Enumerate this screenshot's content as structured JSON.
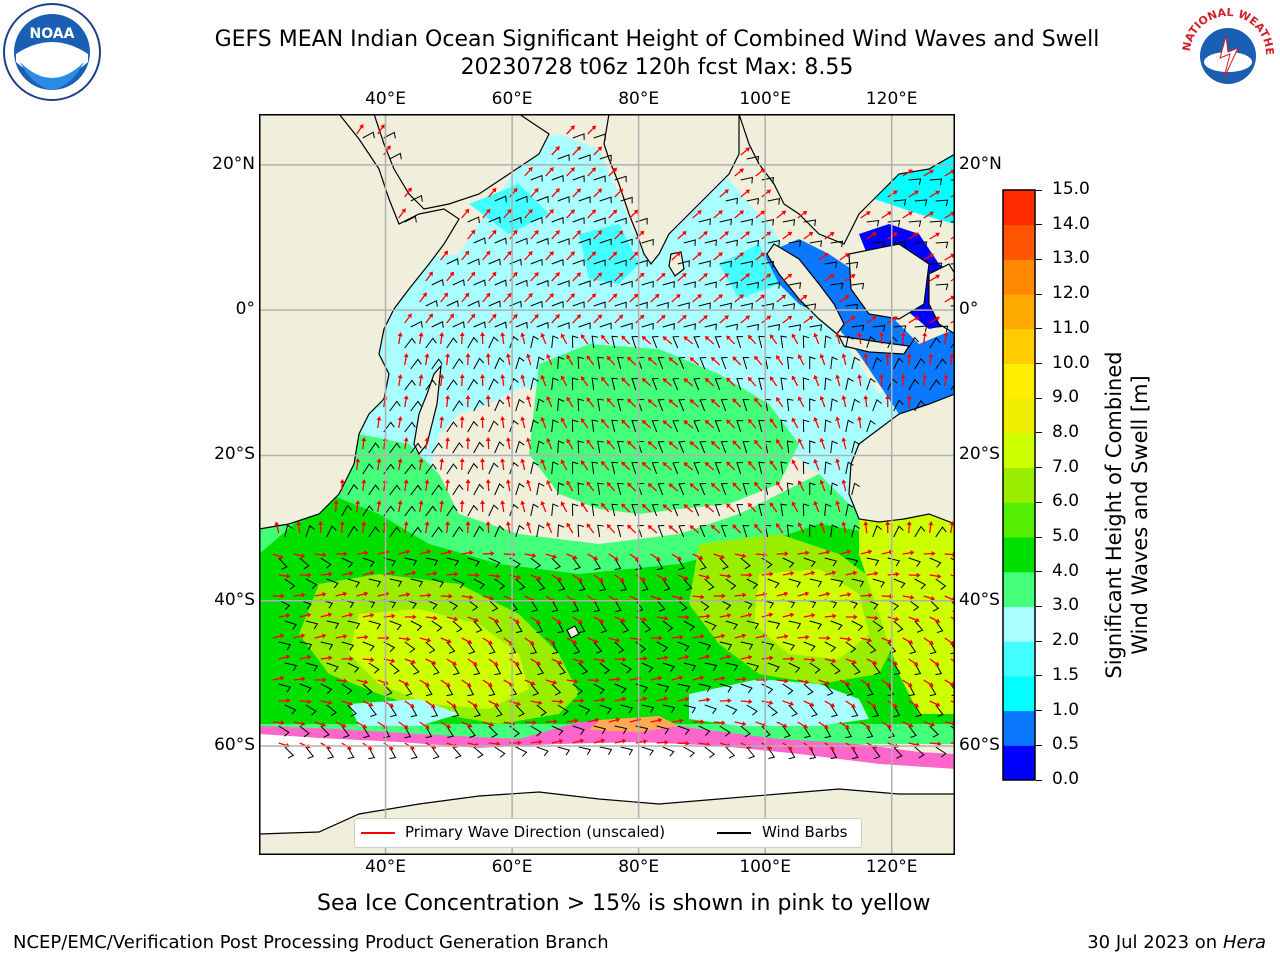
{
  "title": {
    "line1": "GEFS MEAN Indian Ocean Significant Height of Combined Wind Waves and Swell",
    "line2": "20230728 t06z 120h fcst   Max: 8.55"
  },
  "logos": {
    "noaa": "NOAA",
    "nws": "NATIONAL WEATHER SERVICE"
  },
  "map": {
    "lon_ticks": [
      "40°E",
      "60°E",
      "80°E",
      "100°E",
      "120°E"
    ],
    "lon_values": [
      40,
      60,
      80,
      100,
      120
    ],
    "lat_ticks": [
      "20°N",
      "0°",
      "20°S",
      "40°S",
      "60°S"
    ],
    "lat_values": [
      20,
      0,
      -20,
      -40,
      -60
    ],
    "lon_range": [
      20,
      130
    ],
    "lat_range": [
      -75,
      27
    ],
    "colors": {
      "land": "#efefdc",
      "grid": "#b0b0b0",
      "wave_arrows": "#ff0000",
      "wind_barbs": "#000000"
    }
  },
  "legend": {
    "primary_wave": "Primary Wave Direction (unscaled)",
    "wind_barbs": "Wind Barbs"
  },
  "colorbar": {
    "title_line1": "Significant Height of Combined",
    "title_line2": "Wind Waves and Swell [m]",
    "labels": [
      "15.0",
      "14.0",
      "13.0",
      "12.0",
      "11.0",
      "10.0",
      "9.0",
      "8.0",
      "7.0",
      "6.0",
      "5.0",
      "4.0",
      "3.0",
      "2.0",
      "1.5",
      "1.0",
      "0.5",
      "0.0"
    ],
    "colors": [
      "#0000ff",
      "#0a78ff",
      "#00ffff",
      "#44ffff",
      "#a9ffff",
      "#44ff7a",
      "#00e000",
      "#55ee00",
      "#99ee00",
      "#ccff00",
      "#eeee00",
      "#ffee00",
      "#ffcc00",
      "#ffaa00",
      "#ff8800",
      "#ff5500",
      "#ff2a00"
    ]
  },
  "caption": "Sea Ice Concentration > 15% is shown in pink to yellow",
  "footer": {
    "left": "NCEP/EMC/Verification Post Processing Product Generation Branch",
    "right_date": "30 Jul 2023 on ",
    "right_host": "Hera"
  }
}
